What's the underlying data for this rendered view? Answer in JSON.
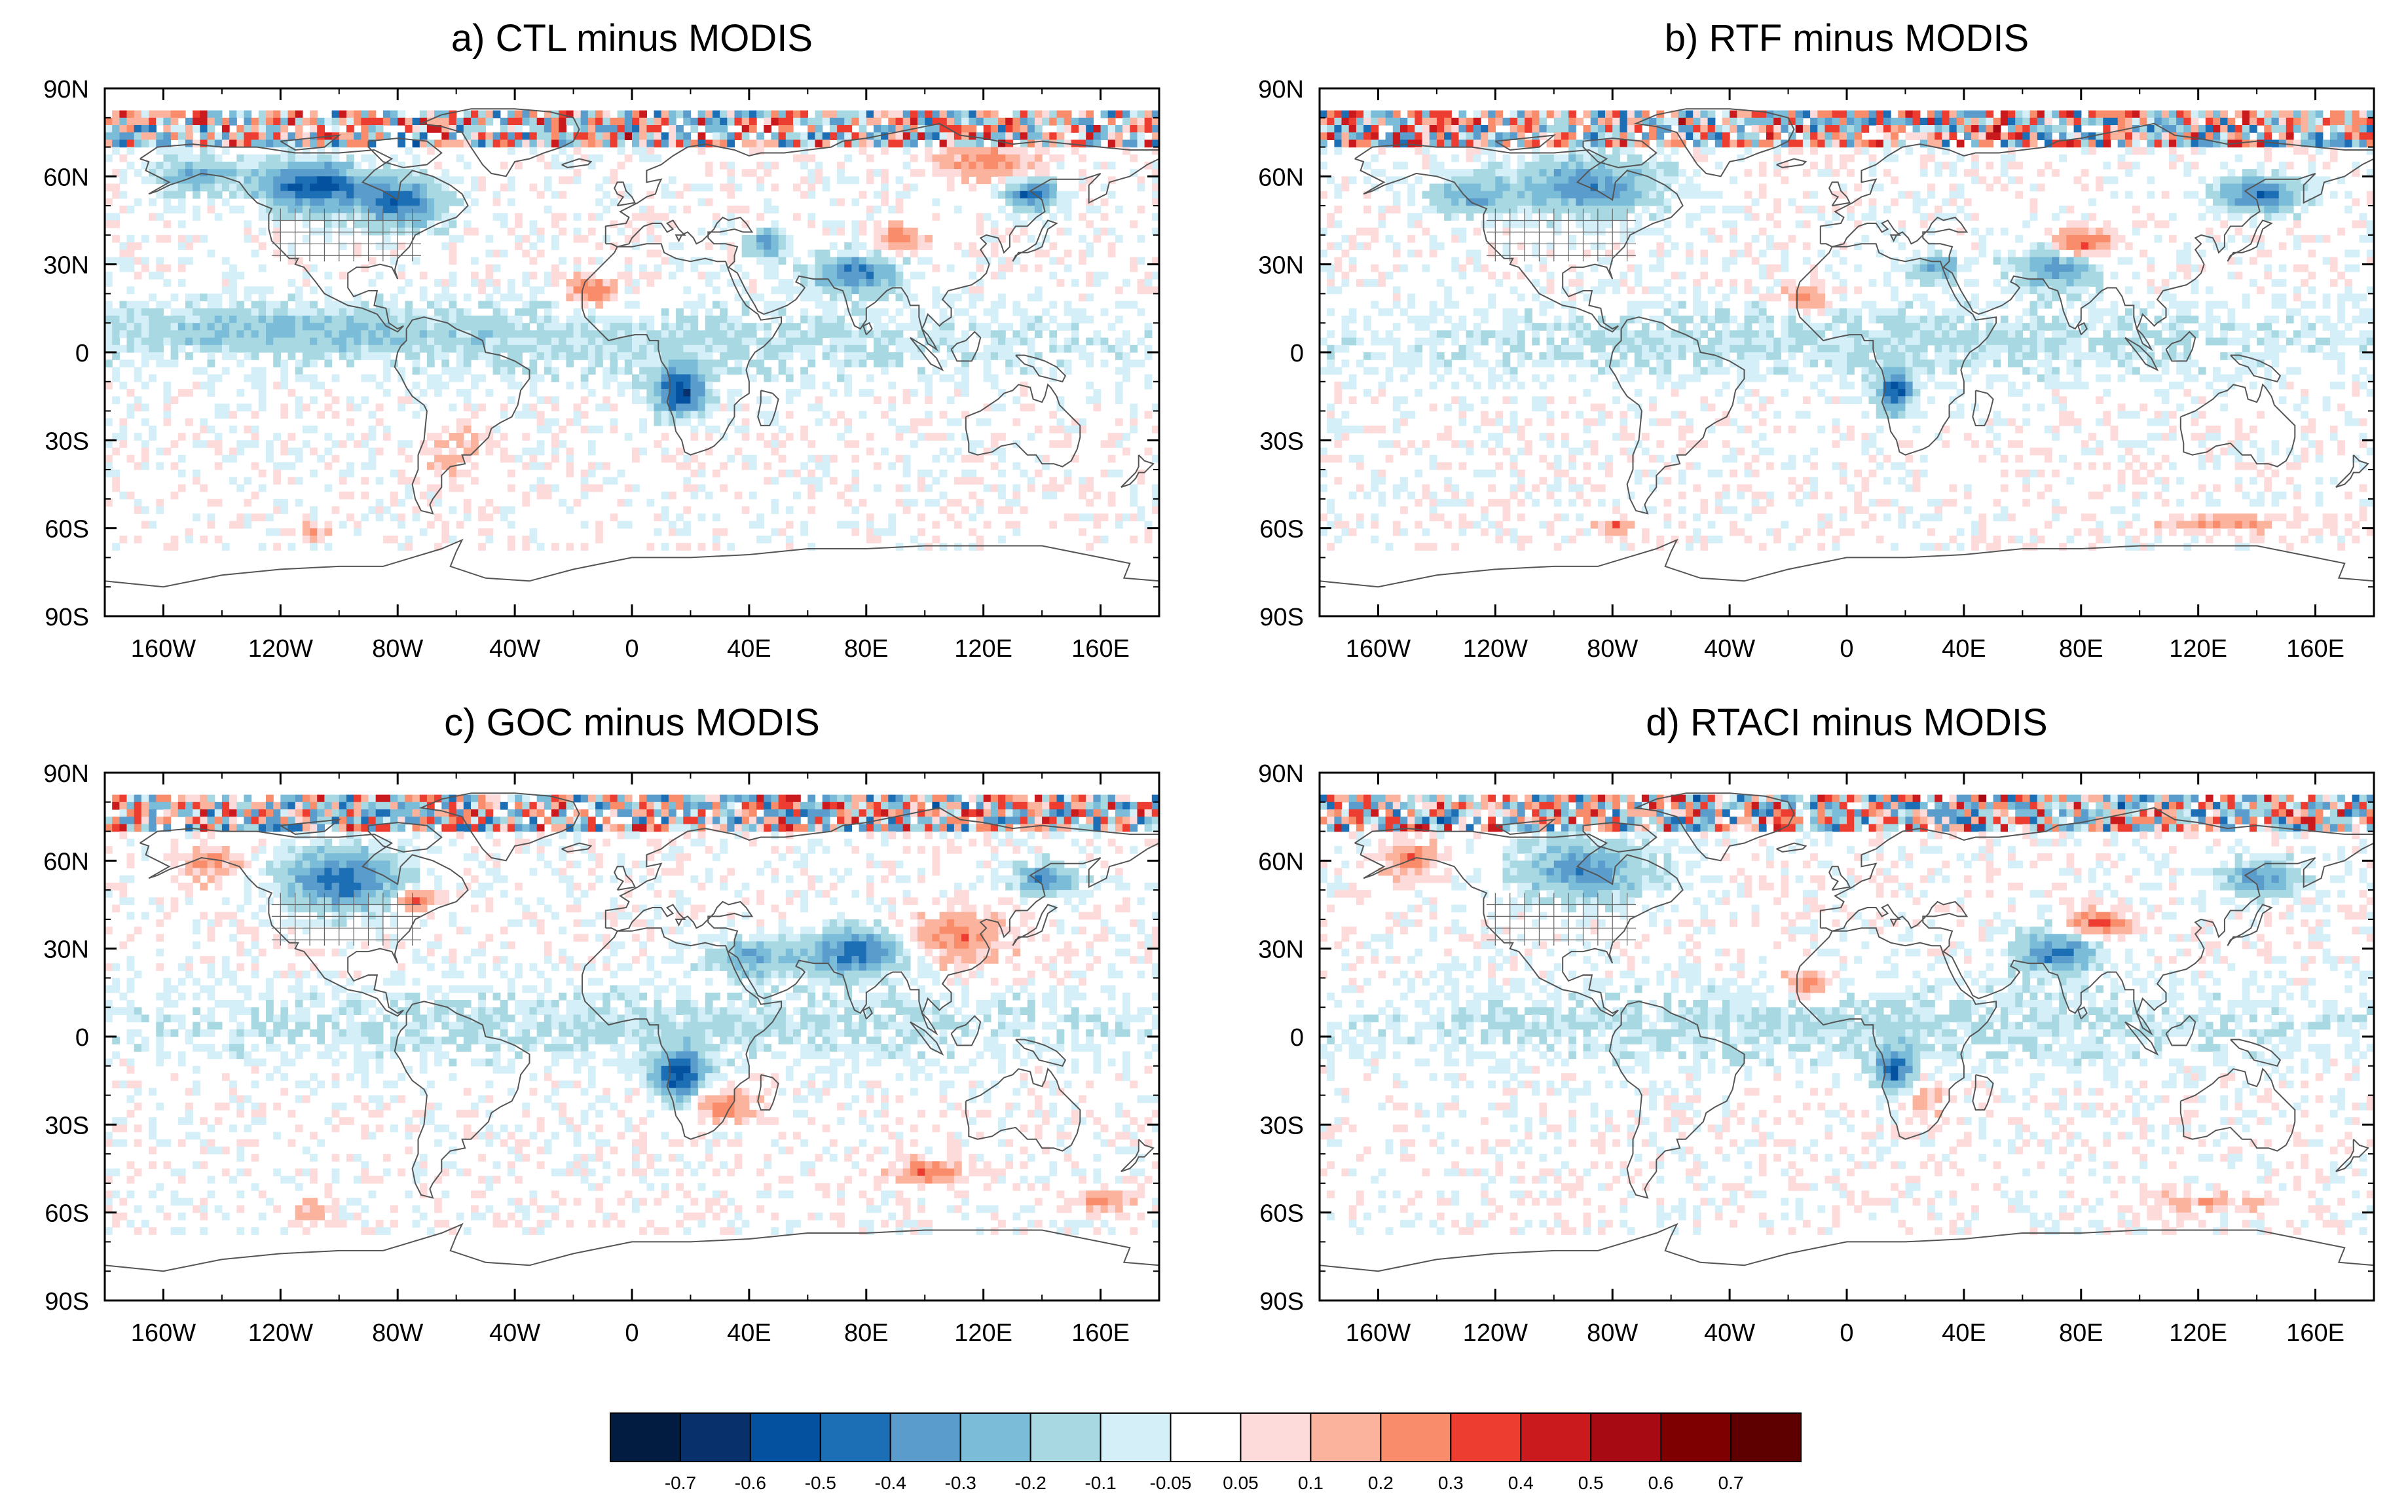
{
  "panels": [
    {
      "title": "a) CTL minus MODIS"
    },
    {
      "title": "b) RTF minus MODIS"
    },
    {
      "title": "c) GOC minus MODIS"
    },
    {
      "title": "d) RTACI minus MODIS"
    }
  ],
  "lat_labels": [
    "90N",
    "60N",
    "30N",
    "0",
    "30S",
    "60S",
    "90S"
  ],
  "lon_labels": [
    "160W",
    "120W",
    "80W",
    "40W",
    "0",
    "40E",
    "80E",
    "120E",
    "160E"
  ],
  "colorbar": {
    "colors": [
      "#011c40",
      "#08306b",
      "#0451a0",
      "#1c6eb5",
      "#5a9ccb",
      "#7bbdd8",
      "#a8d8e2",
      "#d4eff8",
      "#ffffff",
      "#fedbdb",
      "#fbb39d",
      "#f88c6b",
      "#ed3d30",
      "#cb1a1d",
      "#a70a13",
      "#7f0000",
      "#5e0000"
    ],
    "labels": [
      "-0.7",
      "-0.6",
      "-0.5",
      "-0.4",
      "-0.3",
      "-0.2",
      "-0.1",
      "-0.05",
      "0.05",
      "0.1",
      "0.2",
      "0.3",
      "0.4",
      "0.5",
      "0.6",
      "0.7"
    ]
  }
}
